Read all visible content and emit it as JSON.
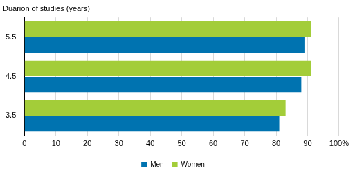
{
  "chart_data": {
    "type": "bar",
    "orientation": "horizontal",
    "ylabel": "Duarion of studies (years)",
    "categories": [
      "5.5",
      "4.5",
      "3.5"
    ],
    "series": [
      {
        "name": "Men",
        "color": "#0073b0",
        "values": [
          89,
          88,
          81
        ]
      },
      {
        "name": "Women",
        "color": "#a3cd39",
        "values": [
          91,
          91,
          83
        ]
      }
    ],
    "xlim": [
      0,
      100
    ],
    "xticks": [
      0,
      10,
      20,
      30,
      40,
      50,
      60,
      70,
      80,
      90,
      {
        "value": 100,
        "label": "100%"
      }
    ],
    "grid": true,
    "legend": "bottom"
  }
}
